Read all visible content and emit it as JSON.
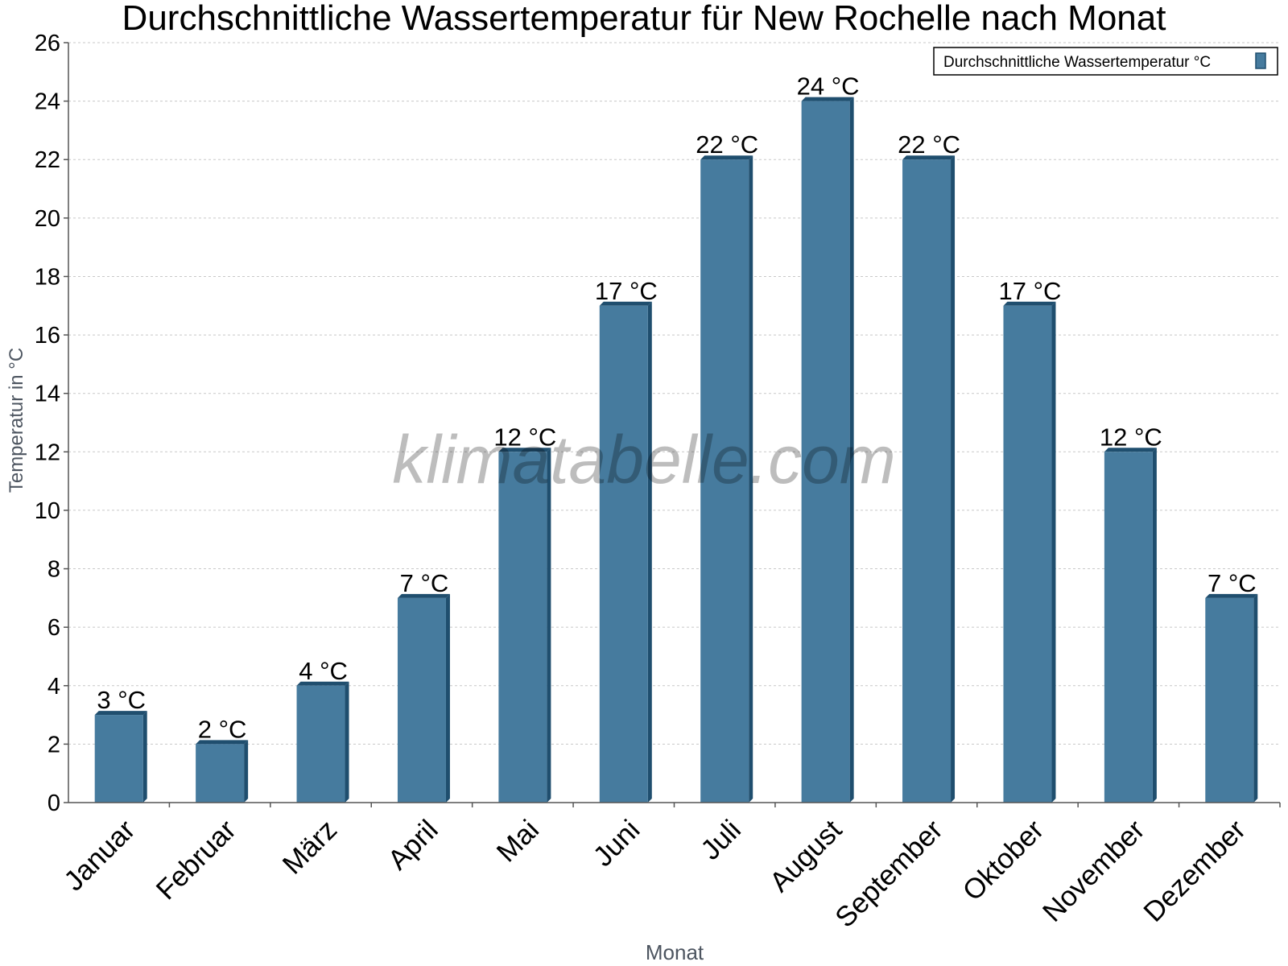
{
  "chart_data": {
    "type": "bar",
    "title": "Durchschnittliche Wassertemperatur für New Rochelle nach Monat",
    "xlabel": "Monat",
    "ylabel": "Temperatur in °C",
    "categories": [
      "Januar",
      "Februar",
      "März",
      "April",
      "Mai",
      "Juni",
      "Juli",
      "August",
      "September",
      "Oktober",
      "November",
      "Dezember"
    ],
    "series": [
      {
        "name": "Durchschnittliche Wassertemperatur °C",
        "values": [
          3,
          2,
          4,
          7,
          12,
          17,
          22,
          24,
          22,
          17,
          12,
          7
        ],
        "value_labels": [
          "3 °C",
          "2 °C",
          "4 °C",
          "7 °C",
          "12 °C",
          "17 °C",
          "22 °C",
          "24 °C",
          "22 °C",
          "17 °C",
          "12 °C",
          "7 °C"
        ]
      }
    ],
    "ylim": [
      0,
      26
    ],
    "yticks": [
      0,
      2,
      4,
      6,
      8,
      10,
      12,
      14,
      16,
      18,
      20,
      22,
      24,
      26
    ],
    "grid": true,
    "legend_position": "top-right",
    "bar_color": "#467b9e",
    "bar_edge_color": "#1f4e6e"
  },
  "watermark": "klimatabelle.com"
}
